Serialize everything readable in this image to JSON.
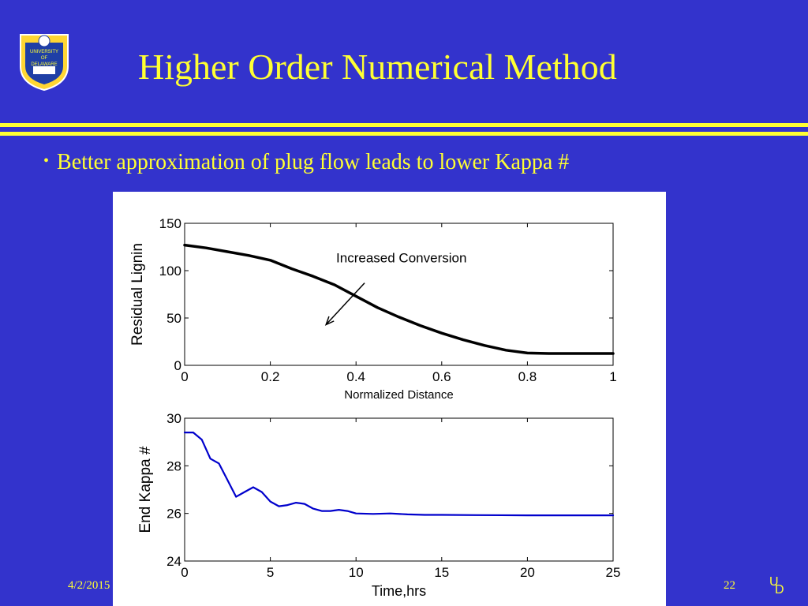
{
  "slide": {
    "title": "Higher Order Numerical Method",
    "bullet": "Better approximation of plug flow leads to lower Kappa #",
    "footer_date": "4/2/2015",
    "page_number": "22",
    "logo_text": "UNIVERSITY OF DELAWARE",
    "colors": {
      "background": "#3333cc",
      "accent": "#ffff33"
    }
  },
  "chart_data": [
    {
      "type": "line",
      "title": "",
      "xlabel": "Normalized Distance",
      "ylabel": "Residual Lignin",
      "xlim": [
        0,
        1
      ],
      "ylim": [
        0,
        150
      ],
      "xticks": [
        0,
        0.2,
        0.4,
        0.6,
        0.8,
        1
      ],
      "xtick_labels": [
        "0",
        "0.2",
        "0.4",
        "0.6",
        "0.8",
        "1"
      ],
      "yticks": [
        0,
        50,
        100,
        150
      ],
      "ytick_labels": [
        "0",
        "50",
        "100",
        "150"
      ],
      "grid": false,
      "line_color": "#000000",
      "annotation": {
        "text": "Increased Conversion",
        "arrow_from": [
          0.42,
          87
        ],
        "arrow_to": [
          0.33,
          43
        ]
      },
      "series": [
        {
          "x": [
            0,
            0.05,
            0.1,
            0.15,
            0.2,
            0.25,
            0.3,
            0.35,
            0.4,
            0.45,
            0.5,
            0.55,
            0.6,
            0.65,
            0.7,
            0.75,
            0.8,
            0.85,
            0.9,
            0.95,
            1
          ],
          "y": [
            127,
            124,
            120,
            116,
            111,
            102,
            94,
            85,
            73,
            61,
            51,
            42,
            34,
            27,
            21,
            16,
            13,
            12.5,
            12.5,
            12.5,
            12.5
          ]
        }
      ]
    },
    {
      "type": "line",
      "title": "",
      "xlabel": "Time,hrs",
      "ylabel": "End Kappa #",
      "xlim": [
        0,
        25
      ],
      "ylim": [
        24,
        30
      ],
      "xticks": [
        0,
        5,
        10,
        15,
        20,
        25
      ],
      "xtick_labels": [
        "0",
        "5",
        "10",
        "15",
        "20",
        "25"
      ],
      "yticks": [
        24,
        26,
        28,
        30
      ],
      "ytick_labels": [
        "24",
        "26",
        "28",
        "30"
      ],
      "grid": false,
      "line_color": "#0000cc",
      "series": [
        {
          "x": [
            0,
            0.5,
            1,
            1.5,
            2,
            2.5,
            3,
            3.5,
            4,
            4.5,
            5,
            5.5,
            6,
            6.5,
            7,
            7.5,
            8,
            8.5,
            9,
            9.5,
            10,
            11,
            12,
            13,
            14,
            15,
            17,
            20,
            23,
            25
          ],
          "y": [
            29.4,
            29.4,
            29.1,
            28.3,
            28.1,
            27.4,
            26.7,
            26.9,
            27.1,
            26.9,
            26.5,
            26.3,
            26.35,
            26.45,
            26.4,
            26.2,
            26.1,
            26.1,
            26.15,
            26.1,
            26.0,
            25.98,
            26.0,
            25.96,
            25.94,
            25.94,
            25.93,
            25.92,
            25.92,
            25.92
          ]
        }
      ]
    }
  ]
}
